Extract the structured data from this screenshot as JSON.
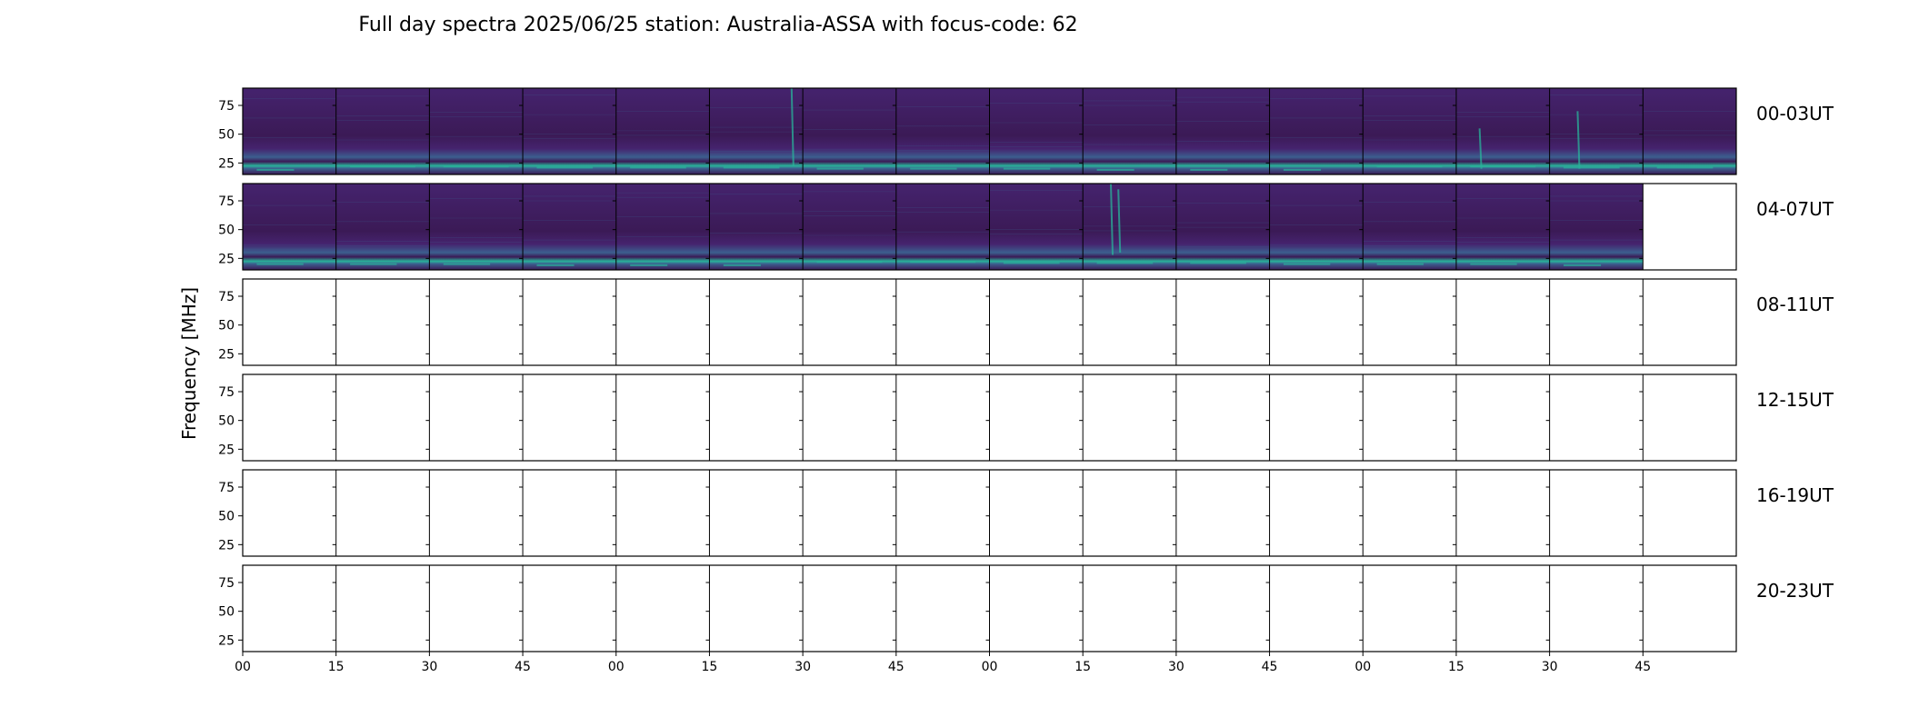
{
  "chart_data": {
    "type": "heatmap",
    "title": "Full day spectra 2025/06/25 station: Australia-ASSA with focus-code: 62",
    "ylabel": "Frequency [MHz]",
    "xlabel": "",
    "y_ticks": [
      25,
      50,
      75
    ],
    "ylim": [
      15,
      90
    ],
    "x_tick_labels": [
      "00",
      "15",
      "30",
      "45",
      "00",
      "15",
      "30",
      "45",
      "00",
      "15",
      "30",
      "45",
      "00",
      "15",
      "30",
      "45"
    ],
    "panels_per_row": 16,
    "panel_minutes": 15,
    "colormap": "viridis",
    "rows": [
      {
        "label": "00-03UT",
        "filled_panels": 16,
        "bursts": [
          {
            "panel": 5,
            "at": 0.88,
            "top": 90,
            "bottom": 22
          },
          {
            "panel": 13,
            "at": 0.25,
            "top": 55,
            "bottom": 20
          },
          {
            "panel": 14,
            "at": 0.3,
            "top": 70,
            "bottom": 20
          }
        ]
      },
      {
        "label": "04-07UT",
        "filled_panels": 15,
        "bursts": [
          {
            "panel": 9,
            "at": 0.3,
            "top": 90,
            "bottom": 28
          },
          {
            "panel": 9,
            "at": 0.38,
            "top": 85,
            "bottom": 30
          }
        ]
      },
      {
        "label": "08-11UT",
        "filled_panels": 0,
        "bursts": []
      },
      {
        "label": "12-15UT",
        "filled_panels": 0,
        "bursts": []
      },
      {
        "label": "16-19UT",
        "filled_panels": 0,
        "bursts": []
      },
      {
        "label": "20-23UT",
        "filled_panels": 0,
        "bursts": []
      }
    ]
  },
  "colors": {
    "background_low": "#3b1a56",
    "background_mid": "#45236e",
    "band_highlight": "#29b39a",
    "band_mid": "#3c5f8f",
    "frame": "#000000"
  }
}
